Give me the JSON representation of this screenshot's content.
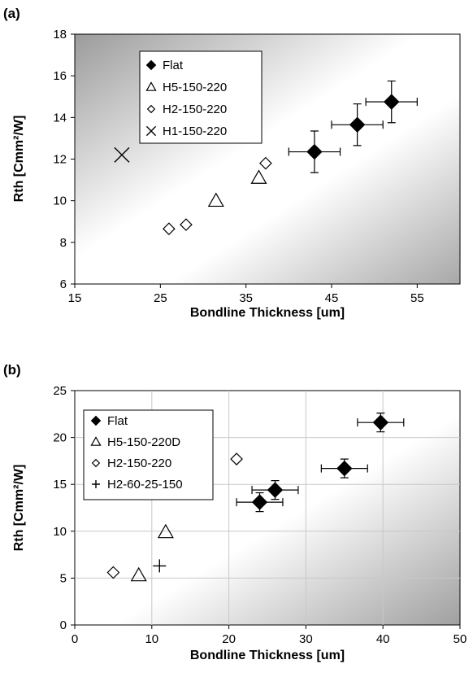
{
  "chart_data": [
    {
      "type": "scatter",
      "panel_label": "(a)",
      "xlabel": "Bondline Thickness [um]",
      "ylabel": "Rth [Cmm²/W]",
      "xlim": [
        15,
        60
      ],
      "ylim": [
        6,
        18
      ],
      "xticks": [
        15,
        25,
        35,
        45,
        55
      ],
      "yticks": [
        6,
        8,
        10,
        12,
        14,
        16,
        18
      ],
      "grid": false,
      "legend_position": "top-left",
      "series": [
        {
          "name": "Flat",
          "marker": "filled-diamond",
          "points": [
            {
              "x": 43.0,
              "y": 12.35,
              "xerr": 3.0,
              "yerr": 1.0
            },
            {
              "x": 48.0,
              "y": 13.65,
              "xerr": 3.0,
              "yerr": 1.0
            },
            {
              "x": 52.0,
              "y": 14.75,
              "xerr": 3.0,
              "yerr": 1.0
            }
          ]
        },
        {
          "name": "H5-150-220",
          "marker": "open-triangle",
          "points": [
            {
              "x": 31.5,
              "y": 10.0
            },
            {
              "x": 36.5,
              "y": 11.1
            }
          ]
        },
        {
          "name": "H2-150-220",
          "marker": "open-diamond",
          "points": [
            {
              "x": 26.0,
              "y": 8.65
            },
            {
              "x": 28.0,
              "y": 8.85
            },
            {
              "x": 37.3,
              "y": 11.8
            }
          ]
        },
        {
          "name": "H1-150-220",
          "marker": "x",
          "points": [
            {
              "x": 20.5,
              "y": 12.2
            }
          ]
        }
      ]
    },
    {
      "type": "scatter",
      "panel_label": "(b)",
      "xlabel": "Bondline Thickness [um]",
      "ylabel": "Rth [Cmm²/W]",
      "xlim": [
        0,
        50
      ],
      "ylim": [
        0,
        25
      ],
      "xticks": [
        0,
        10,
        20,
        30,
        40,
        50
      ],
      "yticks": [
        0,
        5,
        10,
        15,
        20,
        25
      ],
      "grid": true,
      "legend_position": "top-left",
      "series": [
        {
          "name": "Flat",
          "marker": "filled-diamond",
          "points": [
            {
              "x": 24.0,
              "y": 13.1,
              "xerr": 3.0,
              "yerr": 1.0
            },
            {
              "x": 26.0,
              "y": 14.4,
              "xerr": 3.0,
              "yerr": 1.0
            },
            {
              "x": 35.0,
              "y": 16.7,
              "xerr": 3.0,
              "yerr": 1.0
            },
            {
              "x": 39.7,
              "y": 21.6,
              "xerr": 3.0,
              "yerr": 1.0
            }
          ]
        },
        {
          "name": "H5-150-220D",
          "marker": "open-triangle",
          "points": [
            {
              "x": 8.3,
              "y": 5.3
            },
            {
              "x": 11.8,
              "y": 9.9
            }
          ]
        },
        {
          "name": "H2-150-220",
          "marker": "open-diamond",
          "points": [
            {
              "x": 5.0,
              "y": 5.6
            },
            {
              "x": 21.0,
              "y": 17.7
            }
          ]
        },
        {
          "name": "H2-60-25-150",
          "marker": "plus",
          "points": [
            {
              "x": 11.0,
              "y": 6.3
            }
          ]
        }
      ]
    }
  ]
}
